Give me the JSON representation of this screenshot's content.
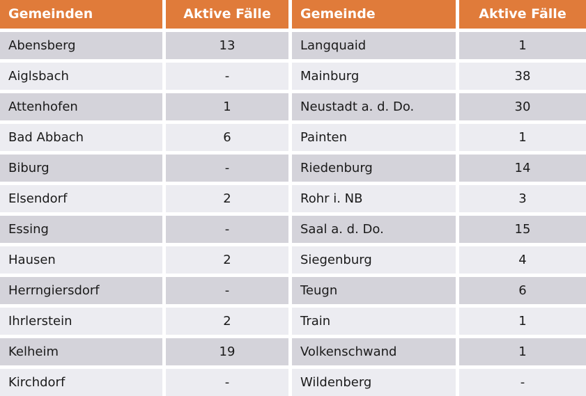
{
  "chart_data": {
    "type": "table",
    "columns": [
      "Gemeinden",
      "Aktive Fälle",
      "Gemeinde",
      "Aktive Fälle"
    ],
    "rows": [
      [
        "Abensberg",
        "13",
        "Langquaid",
        "1"
      ],
      [
        "Aiglsbach",
        "-",
        "Mainburg",
        "38"
      ],
      [
        "Attenhofen",
        "1",
        "Neustadt a. d. Do.",
        "30"
      ],
      [
        "Bad Abbach",
        "6",
        "Painten",
        "1"
      ],
      [
        "Biburg",
        "-",
        "Riedenburg",
        "14"
      ],
      [
        "Elsendorf",
        "2",
        "Rohr i. NB",
        "3"
      ],
      [
        "Essing",
        "-",
        "Saal a. d. Do.",
        "15"
      ],
      [
        "Hausen",
        "2",
        "Siegenburg",
        "4"
      ],
      [
        "Herrngiersdorf",
        "-",
        "Teugn",
        "6"
      ],
      [
        "Ihrlerstein",
        "2",
        "Train",
        "1"
      ],
      [
        "Kelheim",
        "19",
        "Volkenschwand",
        "1"
      ],
      [
        "Kirchdorf",
        "-",
        "Wildenberg",
        "-"
      ]
    ]
  },
  "colors": {
    "header_bg": "#e07b3a",
    "header_text": "#ffffff",
    "row_dark": "#d4d3da",
    "row_light": "#ececf1",
    "cell_text": "#1a1a1a"
  }
}
